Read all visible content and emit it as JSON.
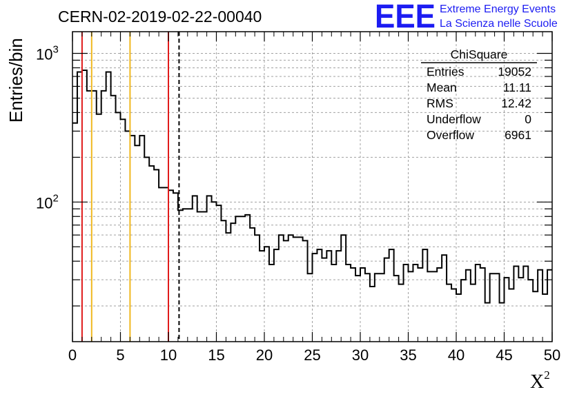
{
  "chart_data": {
    "type": "histogram",
    "title": "CERN-02-2019-02-22-00040",
    "xlabel": "X",
    "xlabel_sup": "2",
    "ylabel": "Entries/bin",
    "xlim": [
      0,
      50
    ],
    "ylim": [
      11.5,
      1400
    ],
    "log_y": true,
    "grid": true,
    "bin_width": 0.5,
    "x_tick_labels": [
      "0",
      "5",
      "10",
      "15",
      "20",
      "25",
      "30",
      "35",
      "40",
      "45",
      "50"
    ],
    "y_tick_labels": [
      {
        "value": 100,
        "mantissa": "10",
        "exponent": "2"
      },
      {
        "value": 1000,
        "mantissa": "10",
        "exponent": "3"
      }
    ],
    "values": [
      340,
      750,
      770,
      560,
      560,
      390,
      560,
      750,
      520,
      400,
      360,
      300,
      280,
      240,
      280,
      200,
      175,
      165,
      125,
      125,
      120,
      115,
      88,
      90,
      90,
      110,
      86,
      86,
      110,
      100,
      95,
      75,
      62,
      72,
      80,
      80,
      82,
      67,
      60,
      47,
      50,
      38,
      48,
      60,
      55,
      60,
      58,
      58,
      55,
      33,
      45,
      48,
      42,
      47,
      38,
      47,
      60,
      38,
      36,
      32,
      36,
      33,
      27,
      33,
      33,
      42,
      48,
      32,
      28,
      38,
      34,
      38,
      36,
      48,
      34,
      34,
      36,
      44,
      28,
      26,
      24,
      30,
      35,
      28,
      38,
      36,
      21,
      33,
      33,
      21,
      31,
      26,
      37,
      31,
      37,
      30,
      25,
      35,
      24,
      35
    ],
    "vertical_lines": [
      {
        "x": 1,
        "color": "#e01a1a",
        "style": "solid"
      },
      {
        "x": 2,
        "color": "#f0b81e",
        "style": "solid"
      },
      {
        "x": 6,
        "color": "#f0b81e",
        "style": "solid"
      },
      {
        "x": 10,
        "color": "#e01a1a",
        "style": "solid"
      },
      {
        "x": 11.11,
        "color": "#000000",
        "style": "dashed"
      }
    ],
    "stats_box": {
      "title": "ChiSquare",
      "rows": [
        {
          "label": "Entries",
          "value": "19052"
        },
        {
          "label": "Mean",
          "value": "11.11"
        },
        {
          "label": "RMS",
          "value": "12.42"
        },
        {
          "label": "Underflow",
          "value": "0"
        },
        {
          "label": "Overflow",
          "value": "6961"
        }
      ]
    },
    "logo": {
      "mark": "EEE",
      "line1": "Extreme Energy Events",
      "line2": "La Scienza nelle Scuole",
      "color": "#1c1cf2"
    }
  }
}
